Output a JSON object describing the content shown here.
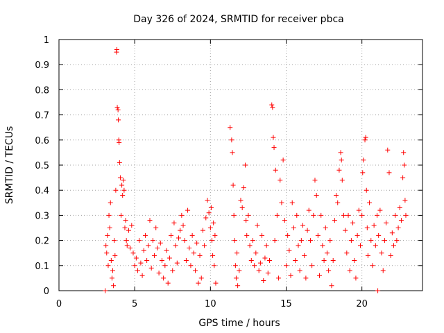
{
  "chart_data": {
    "type": "scatter",
    "title": "Day 326 of 2024, SRMTID for receiver pbca",
    "xlabel": "GPS time / hours",
    "ylabel": "SRMTID / TECUs",
    "xlim": [
      0,
      24
    ],
    "ylim": [
      0,
      1
    ],
    "x_ticks": [
      0,
      5,
      10,
      15,
      20
    ],
    "y_ticks": [
      0,
      0.1,
      0.2,
      0.3,
      0.4,
      0.5,
      0.6,
      0.7,
      0.8,
      0.9,
      1
    ],
    "x_tick_labels": [
      "0",
      "5",
      "10",
      "15",
      "20"
    ],
    "y_tick_labels": [
      "0",
      "0.1",
      "0.2",
      "0.3",
      "0.4",
      "0.5",
      "0.6",
      "0.7",
      "0.8",
      "0.9",
      "1"
    ],
    "grid": true,
    "marker": "+",
    "series_color": "#ff0000",
    "series": [
      {
        "name": "SRMTID",
        "points": [
          [
            3.05,
            0.0
          ],
          [
            3.1,
            0.18
          ],
          [
            3.15,
            0.15
          ],
          [
            3.2,
            0.22
          ],
          [
            3.25,
            0.1
          ],
          [
            3.3,
            0.3
          ],
          [
            3.35,
            0.25
          ],
          [
            3.4,
            0.35
          ],
          [
            3.45,
            0.12
          ],
          [
            3.5,
            0.05
          ],
          [
            3.55,
            0.08
          ],
          [
            3.6,
            0.02
          ],
          [
            3.65,
            0.2
          ],
          [
            3.7,
            0.14
          ],
          [
            3.75,
            0.4
          ],
          [
            3.8,
            0.95
          ],
          [
            3.82,
            0.96
          ],
          [
            3.85,
            0.73
          ],
          [
            3.9,
            0.72
          ],
          [
            3.92,
            0.68
          ],
          [
            3.95,
            0.6
          ],
          [
            3.97,
            0.59
          ],
          [
            4.0,
            0.51
          ],
          [
            4.05,
            0.45
          ],
          [
            4.1,
            0.3
          ],
          [
            4.15,
            0.42
          ],
          [
            4.2,
            0.38
          ],
          [
            4.25,
            0.44
          ],
          [
            4.3,
            0.4
          ],
          [
            4.35,
            0.25
          ],
          [
            4.4,
            0.28
          ],
          [
            4.45,
            0.2
          ],
          [
            4.5,
            0.18
          ],
          [
            4.6,
            0.24
          ],
          [
            4.7,
            0.17
          ],
          [
            4.8,
            0.26
          ],
          [
            4.9,
            0.15
          ],
          [
            5.0,
            0.1
          ],
          [
            5.1,
            0.13
          ],
          [
            5.2,
            0.08
          ],
          [
            5.3,
            0.2
          ],
          [
            5.4,
            0.11
          ],
          [
            5.5,
            0.06
          ],
          [
            5.6,
            0.16
          ],
          [
            5.7,
            0.22
          ],
          [
            5.8,
            0.12
          ],
          [
            5.9,
            0.18
          ],
          [
            6.0,
            0.28
          ],
          [
            6.1,
            0.09
          ],
          [
            6.2,
            0.2
          ],
          [
            6.3,
            0.14
          ],
          [
            6.4,
            0.25
          ],
          [
            6.5,
            0.17
          ],
          [
            6.6,
            0.07
          ],
          [
            6.7,
            0.19
          ],
          [
            6.8,
            0.12
          ],
          [
            6.9,
            0.05
          ],
          [
            7.0,
            0.1
          ],
          [
            7.1,
            0.16
          ],
          [
            7.2,
            0.03
          ],
          [
            7.3,
            0.13
          ],
          [
            7.4,
            0.22
          ],
          [
            7.5,
            0.08
          ],
          [
            7.6,
            0.27
          ],
          [
            7.7,
            0.18
          ],
          [
            7.8,
            0.11
          ],
          [
            7.9,
            0.21
          ],
          [
            8.0,
            0.24
          ],
          [
            8.1,
            0.3
          ],
          [
            8.2,
            0.26
          ],
          [
            8.3,
            0.2
          ],
          [
            8.4,
            0.12
          ],
          [
            8.5,
            0.32
          ],
          [
            8.6,
            0.17
          ],
          [
            8.7,
            0.1
          ],
          [
            8.8,
            0.22
          ],
          [
            8.9,
            0.15
          ],
          [
            9.0,
            0.08
          ],
          [
            9.1,
            0.19
          ],
          [
            9.2,
            0.03
          ],
          [
            9.3,
            0.14
          ],
          [
            9.4,
            0.05
          ],
          [
            9.5,
            0.24
          ],
          [
            9.6,
            0.18
          ],
          [
            9.7,
            0.29
          ],
          [
            9.8,
            0.36
          ],
          [
            9.9,
            0.31
          ],
          [
            10.0,
            0.25
          ],
          [
            10.05,
            0.33
          ],
          [
            10.1,
            0.2
          ],
          [
            10.15,
            0.14
          ],
          [
            10.2,
            0.27
          ],
          [
            10.25,
            0.1
          ],
          [
            10.3,
            0.22
          ],
          [
            10.35,
            0.03
          ],
          [
            11.3,
            0.65
          ],
          [
            11.4,
            0.6
          ],
          [
            11.45,
            0.55
          ],
          [
            11.5,
            0.42
          ],
          [
            11.55,
            0.3
          ],
          [
            11.6,
            0.2
          ],
          [
            11.65,
            0.1
          ],
          [
            11.7,
            0.05
          ],
          [
            11.75,
            0.15
          ],
          [
            11.8,
            0.02
          ],
          [
            11.9,
            0.08
          ],
          [
            12.0,
            0.36
          ],
          [
            12.1,
            0.33
          ],
          [
            12.2,
            0.41
          ],
          [
            12.3,
            0.5
          ],
          [
            12.35,
            0.28
          ],
          [
            12.4,
            0.22
          ],
          [
            12.5,
            0.3
          ],
          [
            12.6,
            0.18
          ],
          [
            12.7,
            0.12
          ],
          [
            12.8,
            0.2
          ],
          [
            12.9,
            0.1
          ],
          [
            13.0,
            0.15
          ],
          [
            13.1,
            0.26
          ],
          [
            13.2,
            0.08
          ],
          [
            13.3,
            0.11
          ],
          [
            13.4,
            0.22
          ],
          [
            13.5,
            0.04
          ],
          [
            13.6,
            0.13
          ],
          [
            13.7,
            0.18
          ],
          [
            13.8,
            0.07
          ],
          [
            13.9,
            0.12
          ],
          [
            14.05,
            0.74
          ],
          [
            14.1,
            0.73
          ],
          [
            14.15,
            0.61
          ],
          [
            14.2,
            0.57
          ],
          [
            14.25,
            0.2
          ],
          [
            14.3,
            0.48
          ],
          [
            14.4,
            0.3
          ],
          [
            14.5,
            0.05
          ],
          [
            14.6,
            0.44
          ],
          [
            14.7,
            0.35
          ],
          [
            14.8,
            0.52
          ],
          [
            14.9,
            0.28
          ],
          [
            15.0,
            0.1
          ],
          [
            15.1,
            0.22
          ],
          [
            15.2,
            0.16
          ],
          [
            15.3,
            0.06
          ],
          [
            15.4,
            0.35
          ],
          [
            15.5,
            0.25
          ],
          [
            15.6,
            0.12
          ],
          [
            15.7,
            0.3
          ],
          [
            15.8,
            0.18
          ],
          [
            15.9,
            0.08
          ],
          [
            16.0,
            0.2
          ],
          [
            16.1,
            0.26
          ],
          [
            16.2,
            0.14
          ],
          [
            16.3,
            0.05
          ],
          [
            16.4,
            0.24
          ],
          [
            16.5,
            0.32
          ],
          [
            16.6,
            0.2
          ],
          [
            16.7,
            0.1
          ],
          [
            16.8,
            0.3
          ],
          [
            16.9,
            0.44
          ],
          [
            17.0,
            0.38
          ],
          [
            17.1,
            0.22
          ],
          [
            17.2,
            0.06
          ],
          [
            17.3,
            0.3
          ],
          [
            17.4,
            0.18
          ],
          [
            17.5,
            0.12
          ],
          [
            17.6,
            0.25
          ],
          [
            17.7,
            0.15
          ],
          [
            17.8,
            0.08
          ],
          [
            17.9,
            0.2
          ],
          [
            18.0,
            0.02
          ],
          [
            18.1,
            0.12
          ],
          [
            18.2,
            0.28
          ],
          [
            18.3,
            0.38
          ],
          [
            18.4,
            0.35
          ],
          [
            18.5,
            0.48
          ],
          [
            18.6,
            0.55
          ],
          [
            18.65,
            0.52
          ],
          [
            18.7,
            0.44
          ],
          [
            18.8,
            0.3
          ],
          [
            18.9,
            0.24
          ],
          [
            19.0,
            0.15
          ],
          [
            19.1,
            0.3
          ],
          [
            19.2,
            0.08
          ],
          [
            19.3,
            0.2
          ],
          [
            19.4,
            0.27
          ],
          [
            19.5,
            0.12
          ],
          [
            19.6,
            0.05
          ],
          [
            19.7,
            0.22
          ],
          [
            19.8,
            0.32
          ],
          [
            19.9,
            0.18
          ],
          [
            20.0,
            0.3
          ],
          [
            20.05,
            0.47
          ],
          [
            20.1,
            0.52
          ],
          [
            20.2,
            0.6
          ],
          [
            20.25,
            0.61
          ],
          [
            20.3,
            0.4
          ],
          [
            20.35,
            0.25
          ],
          [
            20.4,
            0.14
          ],
          [
            20.5,
            0.35
          ],
          [
            20.6,
            0.2
          ],
          [
            20.7,
            0.1
          ],
          [
            20.8,
            0.26
          ],
          [
            20.9,
            0.18
          ],
          [
            21.0,
            0.3
          ],
          [
            21.05,
            0.0
          ],
          [
            21.1,
            0.22
          ],
          [
            21.2,
            0.32
          ],
          [
            21.3,
            0.15
          ],
          [
            21.4,
            0.08
          ],
          [
            21.5,
            0.2
          ],
          [
            21.6,
            0.27
          ],
          [
            21.7,
            0.56
          ],
          [
            21.8,
            0.47
          ],
          [
            21.9,
            0.14
          ],
          [
            22.0,
            0.23
          ],
          [
            22.1,
            0.18
          ],
          [
            22.2,
            0.3
          ],
          [
            22.3,
            0.2
          ],
          [
            22.4,
            0.25
          ],
          [
            22.5,
            0.33
          ],
          [
            22.6,
            0.28
          ],
          [
            22.7,
            0.45
          ],
          [
            22.75,
            0.55
          ],
          [
            22.8,
            0.5
          ],
          [
            22.85,
            0.36
          ],
          [
            22.9,
            0.3
          ]
        ]
      }
    ]
  }
}
